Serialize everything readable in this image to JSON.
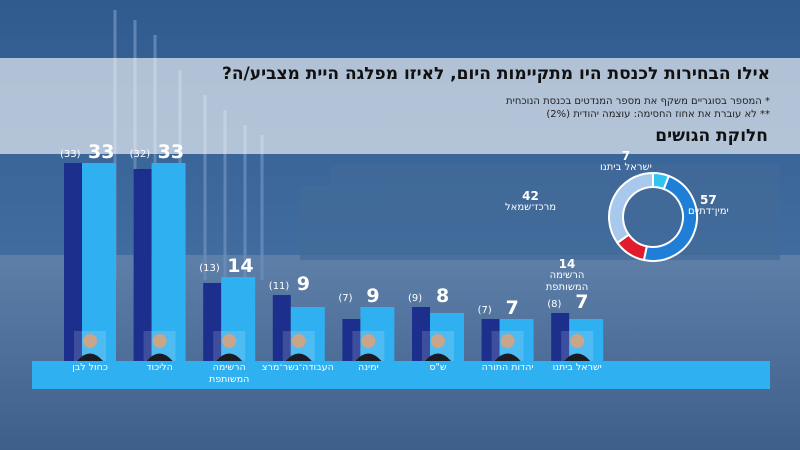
{
  "header": {
    "title": "אילו הבחירות לכנסת היו מתקיימות היום, לאיזו מפלגה היית מצביע/ה?",
    "note_1": "* המספר בסוגריים משקף את מספר המנדטים בכנסת הנוכחית",
    "note_2": "** לא עוברת את אחוז החסימה: עוצמה יהודית (2%)"
  },
  "colors": {
    "bar_current": "#2fb0f0",
    "bar_previous": "#1c2f8c",
    "right_bloc": "#1f7fd6",
    "left_bloc": "#a9c8ee",
    "joint_list": "#e01b2c",
    "yisrael_beytenu": "#33c3f0"
  },
  "chart_data": [
    {
      "type": "bar",
      "categories": [
        "כחול לבן",
        "הליכוד",
        "הרשימה המשותפת",
        "העבודה־גשר־מרצ",
        "ימינה",
        "ש\"ס",
        "יהדות התורה",
        "ישראל ביתנו"
      ],
      "series": [
        {
          "values": [
            33,
            33,
            14,
            9,
            9,
            8,
            7,
            7
          ]
        },
        {
          "values": [
            33,
            32,
            13,
            11,
            7,
            9,
            7,
            8
          ]
        }
      ],
      "value_labels": [
        "33",
        "33",
        "14",
        "9",
        "9",
        "8",
        "7",
        "7"
      ],
      "prev_labels": [
        "(33)",
        "(32)",
        "(13)",
        "(11)",
        "(7)",
        "(9)",
        "(7)",
        "(8)"
      ],
      "ylim": [
        0,
        33
      ]
    },
    {
      "type": "pie",
      "title": "חלוקת הגושים",
      "labels": [
        "ימין־דתיים",
        "ישראל ביתנו",
        "מרכז־שמאל",
        "הרשימה המשותפת"
      ],
      "values": [
        57,
        7,
        42,
        14
      ],
      "value_labels": [
        "57",
        "7",
        "42",
        "14"
      ]
    }
  ]
}
